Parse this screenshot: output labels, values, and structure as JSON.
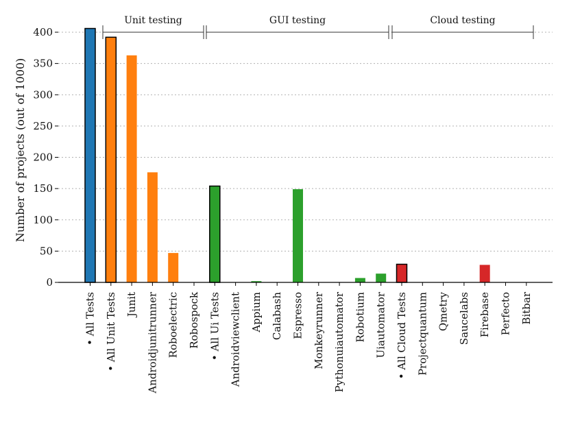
{
  "chart_data": {
    "type": "bar",
    "ylabel": "Number of projects (out of 1000)",
    "ylim": [
      0,
      420
    ],
    "yticks": [
      0,
      50,
      100,
      150,
      200,
      250,
      300,
      350,
      400
    ],
    "grid": "horizontal dotted",
    "categories": [
      "• All Tests",
      "• All Unit Tests",
      "Junit",
      "Androidjunitrunner",
      "Roboelectric",
      "Robospock",
      "• All Ui Tests",
      "Androidviewclient",
      "Appium",
      "Calabash",
      "Espresso",
      "Monkeyrunner",
      "Pythonuiautomator",
      "Robotium",
      "Uiautomator",
      "• All Cloud Tests",
      "Projectquantum",
      "Qmetry",
      "Saucelabs",
      "Firebase",
      "Perfecto",
      "Bitbar"
    ],
    "values": [
      406,
      392,
      363,
      176,
      47,
      0,
      154,
      0,
      2,
      0,
      149,
      0,
      0,
      7,
      14,
      29,
      0,
      0,
      0,
      28,
      0,
      0
    ],
    "colors": [
      "#1f77b4",
      "#ff7f0e",
      "#ff7f0e",
      "#ff7f0e",
      "#ff7f0e",
      "#ff7f0e",
      "#2ca02c",
      "#2ca02c",
      "#2ca02c",
      "#2ca02c",
      "#2ca02c",
      "#2ca02c",
      "#2ca02c",
      "#2ca02c",
      "#2ca02c",
      "#d62728",
      "#d62728",
      "#d62728",
      "#d62728",
      "#d62728",
      "#d62728",
      "#d62728"
    ],
    "outlined": [
      true,
      true,
      false,
      false,
      false,
      false,
      true,
      false,
      false,
      false,
      false,
      false,
      false,
      false,
      false,
      true,
      false,
      false,
      false,
      false,
      false,
      false
    ],
    "groups": [
      {
        "label": "Unit testing",
        "from": "• All Unit Tests",
        "to": "Robospock"
      },
      {
        "label": "GUI testing",
        "from": "• All Ui Tests",
        "to": "Uiautomator"
      },
      {
        "label": "Cloud testing",
        "from": "• All Cloud Tests",
        "to": "Bitbar"
      }
    ]
  }
}
